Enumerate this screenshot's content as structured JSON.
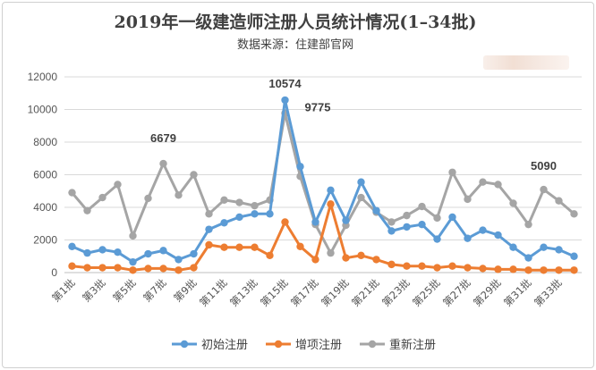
{
  "chart_data": {
    "type": "line",
    "title": "2019年一级建造师注册人员统计情况(1–34批)",
    "subtitle": "数据来源：住建部官网",
    "xlabel": "",
    "ylabel": "",
    "ylim": [
      0,
      12000
    ],
    "yticks": [
      0,
      2000,
      4000,
      6000,
      8000,
      10000,
      12000
    ],
    "grid": true,
    "legend_position": "bottom",
    "categories": [
      "第1批",
      "第2批",
      "第3批",
      "第4批",
      "第5批",
      "第6批",
      "第7批",
      "第8批",
      "第9批",
      "第10批",
      "第11批",
      "第12批",
      "第13批",
      "第14批",
      "第15批",
      "第16批",
      "第17批",
      "第18批",
      "第19批",
      "第20批",
      "第21批",
      "第22批",
      "第23批",
      "第24批",
      "第25批",
      "第26批",
      "第27批",
      "第28批",
      "第29批",
      "第30批",
      "第31批",
      "第32批",
      "第33批",
      "第34批"
    ],
    "tick_labels": [
      "第1批",
      "第3批",
      "第5批",
      "第7批",
      "第9批",
      "第11批",
      "第13批",
      "第15批",
      "第17批",
      "第19批",
      "第21批",
      "第23批",
      "第25批",
      "第27批",
      "第29批",
      "第31批",
      "第33批"
    ],
    "series": [
      {
        "name": "初始注册",
        "color": "#5b9bd5",
        "values": [
          1600,
          1200,
          1400,
          1250,
          650,
          1150,
          1350,
          800,
          1150,
          2650,
          3050,
          3400,
          3600,
          3600,
          10574,
          6500,
          3100,
          5050,
          3200,
          5550,
          3800,
          2550,
          2800,
          2950,
          2050,
          3400,
          2100,
          2600,
          2300,
          1550,
          900,
          1550,
          1400,
          1000
        ]
      },
      {
        "name": "增项注册",
        "color": "#ed7d31",
        "values": [
          400,
          300,
          300,
          300,
          150,
          250,
          250,
          150,
          300,
          1700,
          1550,
          1550,
          1550,
          1050,
          3100,
          1600,
          800,
          4200,
          900,
          1050,
          800,
          500,
          400,
          400,
          300,
          400,
          300,
          250,
          200,
          200,
          150,
          150,
          150,
          150
        ]
      },
      {
        "name": "重新注册",
        "color": "#a5a5a5",
        "values": [
          4900,
          3800,
          4600,
          5400,
          2250,
          4550,
          6679,
          4750,
          6000,
          3600,
          4450,
          4300,
          4100,
          4450,
          9775,
          5900,
          2950,
          1200,
          2900,
          4600,
          3700,
          3100,
          3500,
          4050,
          3350,
          6150,
          4500,
          5550,
          5400,
          4250,
          2950,
          5090,
          4400,
          3600
        ]
      }
    ],
    "annotations": [
      {
        "text": "10574",
        "series": "初始注册",
        "category": "第15批"
      },
      {
        "text": "9775",
        "series": "重新注册",
        "category": "第15批"
      },
      {
        "text": "6679",
        "series": "重新注册",
        "category": "第7批"
      },
      {
        "text": "5090",
        "series": "重新注册",
        "category": "第32批"
      }
    ]
  }
}
